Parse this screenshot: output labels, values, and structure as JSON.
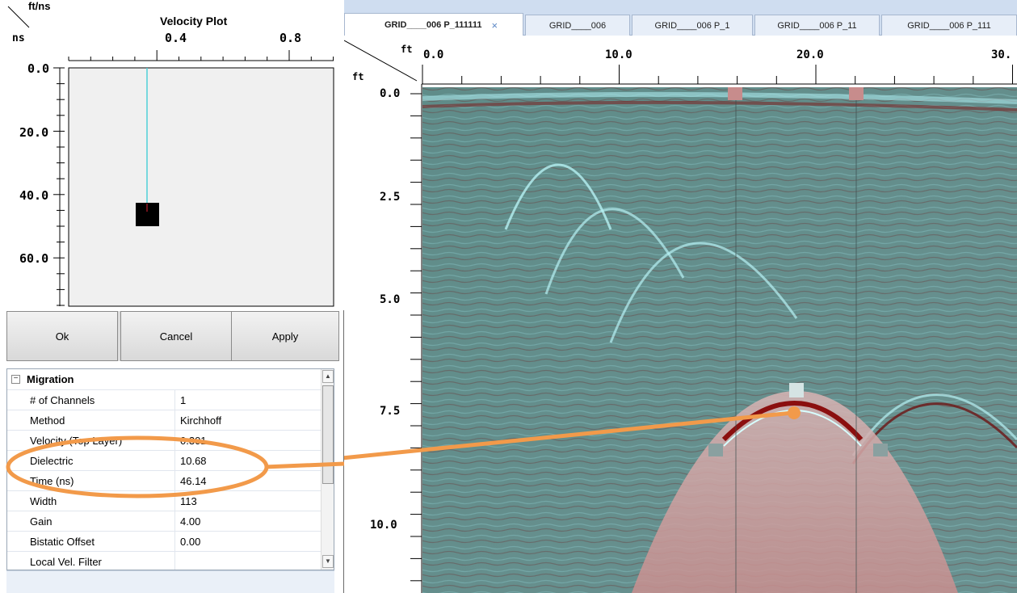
{
  "velocity_plot": {
    "title": "Velocity Plot",
    "x_unit": "ft/ns",
    "y_unit": "ns",
    "x_ticks": [
      "0.4",
      "0.8"
    ],
    "y_ticks": [
      "0.0",
      "20.0",
      "40.0",
      "60.0"
    ],
    "marker": {
      "velocity_ft_ns": 0.301,
      "time_ns": 46.14
    },
    "buttons": {
      "ok": "Ok",
      "cancel": "Cancel",
      "apply": "Apply"
    }
  },
  "properties": {
    "section": "Migration",
    "rows": [
      {
        "k": "# of Channels",
        "v": "1"
      },
      {
        "k": "Method",
        "v": "Kirchhoff"
      },
      {
        "k": "Velocity (Top Layer)",
        "v": "0.301"
      },
      {
        "k": "Dielectric",
        "v": "10.68"
      },
      {
        "k": "Time (ns)",
        "v": "46.14"
      },
      {
        "k": "Width",
        "v": "113"
      },
      {
        "k": "Gain",
        "v": "4.00"
      },
      {
        "k": "Bistatic Offset",
        "v": "0.00"
      },
      {
        "k": "Local Vel. Filter",
        "v": ""
      }
    ]
  },
  "tabs": [
    "GRID____006 P_111111",
    "GRID____006",
    "GRID____006 P_1",
    "GRID____006 P_11",
    "GRID____006 P_111"
  ],
  "radar": {
    "x_unit": "ft",
    "y_unit": "ft",
    "x_ticks": [
      "0.0",
      "10.0",
      "20.0",
      "30."
    ],
    "y_ticks": [
      "0.0",
      "2.5",
      "5.0",
      "7.5",
      "10.0"
    ]
  },
  "colors": {
    "highlight": "#f29a4a",
    "accent": "#4fb7c7",
    "marker": "#000000"
  }
}
